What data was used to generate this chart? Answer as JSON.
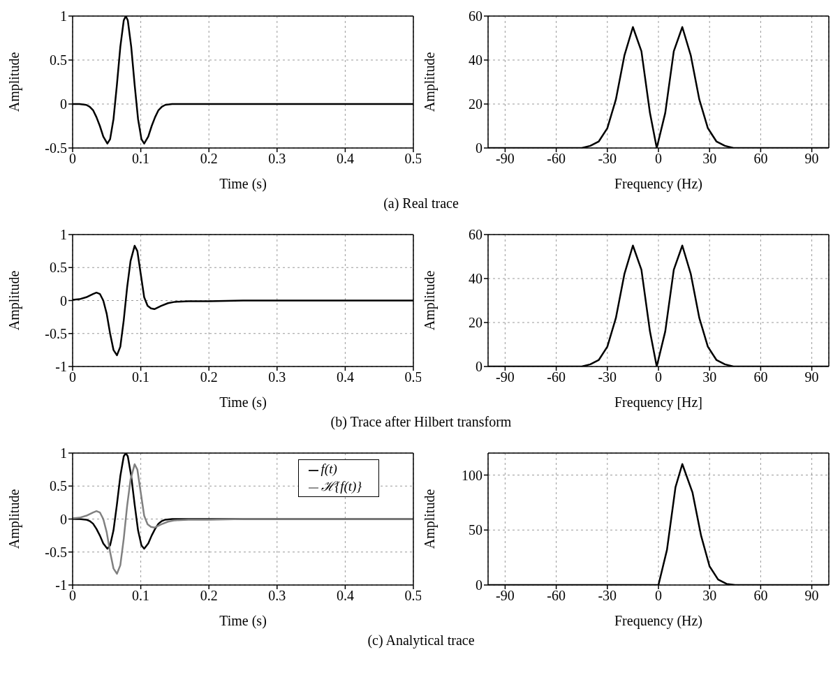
{
  "chart_data": [
    {
      "type": "line",
      "xlabel": "Time (s)",
      "ylabel": "Amplitude",
      "annotations": [
        "(a) Real trace"
      ],
      "xlim": [
        0,
        0.5
      ],
      "xticks": [
        0,
        0.1,
        0.2,
        0.3,
        0.4,
        0.5
      ],
      "ylim": [
        -0.5,
        1
      ],
      "yticks": [
        -0.5,
        0,
        0.5,
        1
      ],
      "grid": true,
      "series": [
        {
          "color": "#000000",
          "x": [
            0,
            0.01,
            0.02,
            0.025,
            0.03,
            0.035,
            0.04,
            0.045,
            0.051,
            0.055,
            0.06,
            0.065,
            0.07,
            0.075,
            0.078,
            0.081,
            0.086,
            0.091,
            0.096,
            0.101,
            0.105,
            0.111,
            0.116,
            0.121,
            0.126,
            0.131,
            0.136,
            0.146,
            0.16,
            0.2,
            0.3,
            0.4,
            0.5
          ],
          "values": [
            0,
            0,
            -0.01,
            -0.03,
            -0.07,
            -0.15,
            -0.25,
            -0.37,
            -0.45,
            -0.4,
            -0.17,
            0.22,
            0.65,
            0.95,
            1,
            0.95,
            0.65,
            0.22,
            -0.17,
            -0.4,
            -0.45,
            -0.37,
            -0.25,
            -0.15,
            -0.07,
            -0.03,
            -0.01,
            0,
            0,
            0,
            0,
            0,
            0
          ]
        }
      ]
    },
    {
      "type": "line",
      "xlabel": "Frequency (Hz)",
      "ylabel": "Amplitude",
      "xlim": [
        -100,
        100
      ],
      "xticks": [
        -90,
        -60,
        -30,
        0,
        30,
        60,
        90
      ],
      "ylim": [
        0,
        60
      ],
      "yticks": [
        0,
        20,
        40,
        60
      ],
      "grid": true,
      "series": [
        {
          "color": "#000000",
          "x": [
            -100,
            -50,
            -45,
            -40,
            -35,
            -30,
            -25,
            -20,
            -15,
            -10,
            -5,
            -1,
            4,
            9,
            14,
            19,
            24,
            29,
            34,
            39,
            44,
            50,
            100
          ],
          "values": [
            0,
            0,
            0,
            1,
            3,
            9,
            22,
            42,
            55,
            44,
            16,
            0,
            16,
            44,
            55,
            42,
            22,
            9,
            3,
            1,
            0,
            0,
            0
          ]
        }
      ]
    },
    {
      "type": "line",
      "xlabel": "Time (s)",
      "ylabel": "Amplitude",
      "annotations": [
        "(b) Trace after Hilbert transform"
      ],
      "xlim": [
        0,
        0.5
      ],
      "xticks": [
        0,
        0.1,
        0.2,
        0.3,
        0.4,
        0.5
      ],
      "ylim": [
        -1,
        1
      ],
      "yticks": [
        -1,
        -0.5,
        0,
        0.5,
        1
      ],
      "grid": true,
      "series": [
        {
          "color": "#000000",
          "x": [
            0,
            0.01,
            0.02,
            0.03,
            0.035,
            0.04,
            0.045,
            0.05,
            0.055,
            0.06,
            0.065,
            0.07,
            0.075,
            0.08,
            0.085,
            0.091,
            0.095,
            0.1,
            0.105,
            0.11,
            0.115,
            0.12,
            0.13,
            0.14,
            0.15,
            0.17,
            0.2,
            0.25,
            0.3,
            0.5
          ],
          "values": [
            0.01,
            0.02,
            0.05,
            0.1,
            0.12,
            0.1,
            0,
            -0.2,
            -0.5,
            -0.75,
            -0.83,
            -0.7,
            -0.3,
            0.2,
            0.6,
            0.83,
            0.75,
            0.4,
            0.05,
            -0.08,
            -0.12,
            -0.13,
            -0.08,
            -0.04,
            -0.02,
            -0.01,
            -0.01,
            0,
            0,
            0
          ]
        }
      ]
    },
    {
      "type": "line",
      "xlabel": "Frequency [Hz]",
      "ylabel": "Amplitude",
      "xlim": [
        -100,
        100
      ],
      "xticks": [
        -90,
        -60,
        -30,
        0,
        30,
        60,
        90
      ],
      "ylim": [
        0,
        60
      ],
      "yticks": [
        0,
        20,
        40,
        60
      ],
      "grid": true,
      "series": [
        {
          "color": "#000000",
          "x": [
            -100,
            -50,
            -45,
            -40,
            -35,
            -30,
            -25,
            -20,
            -15,
            -10,
            -5,
            -1,
            4,
            9,
            14,
            19,
            24,
            29,
            34,
            39,
            44,
            50,
            100
          ],
          "values": [
            0,
            0,
            0,
            1,
            3,
            9,
            22,
            42,
            55,
            44,
            16,
            0,
            16,
            44,
            55,
            42,
            22,
            9,
            3,
            1,
            0,
            0,
            0
          ]
        }
      ]
    },
    {
      "type": "line",
      "xlabel": "Time (s)",
      "ylabel": "Amplitude",
      "annotations": [
        "(c) Analytical trace"
      ],
      "xlim": [
        0,
        0.5
      ],
      "xticks": [
        0,
        0.1,
        0.2,
        0.3,
        0.4,
        0.5
      ],
      "ylim": [
        -1,
        1
      ],
      "yticks": [
        -1,
        -0.5,
        0,
        0.5,
        1
      ],
      "grid": true,
      "legend": "top right",
      "series": [
        {
          "name": "f(t)",
          "color": "#000000",
          "x": [
            0,
            0.01,
            0.02,
            0.025,
            0.03,
            0.035,
            0.04,
            0.045,
            0.051,
            0.055,
            0.06,
            0.065,
            0.07,
            0.075,
            0.078,
            0.081,
            0.086,
            0.091,
            0.096,
            0.101,
            0.105,
            0.111,
            0.116,
            0.121,
            0.126,
            0.131,
            0.136,
            0.146,
            0.16,
            0.2,
            0.3,
            0.4,
            0.5
          ],
          "values": [
            0,
            0,
            -0.01,
            -0.03,
            -0.07,
            -0.15,
            -0.25,
            -0.37,
            -0.45,
            -0.4,
            -0.17,
            0.22,
            0.65,
            0.95,
            1,
            0.95,
            0.65,
            0.22,
            -0.17,
            -0.4,
            -0.45,
            -0.37,
            -0.25,
            -0.15,
            -0.07,
            -0.03,
            -0.01,
            0,
            0,
            0,
            0,
            0,
            0
          ]
        },
        {
          "name": "ℋ{f(t)}",
          "color": "#808080",
          "x": [
            0,
            0.01,
            0.02,
            0.03,
            0.035,
            0.04,
            0.045,
            0.05,
            0.055,
            0.06,
            0.065,
            0.07,
            0.075,
            0.08,
            0.085,
            0.091,
            0.095,
            0.1,
            0.105,
            0.11,
            0.115,
            0.12,
            0.13,
            0.14,
            0.15,
            0.17,
            0.2,
            0.25,
            0.3,
            0.5
          ],
          "values": [
            0.01,
            0.02,
            0.05,
            0.1,
            0.12,
            0.1,
            0,
            -0.2,
            -0.5,
            -0.75,
            -0.83,
            -0.7,
            -0.3,
            0.2,
            0.6,
            0.83,
            0.75,
            0.4,
            0.05,
            -0.08,
            -0.12,
            -0.13,
            -0.08,
            -0.04,
            -0.02,
            -0.01,
            -0.01,
            0,
            0,
            0
          ]
        }
      ]
    },
    {
      "type": "line",
      "xlabel": "Frequency (Hz)",
      "ylabel": "Amplitude",
      "xlim": [
        -100,
        100
      ],
      "xticks": [
        -90,
        -60,
        -30,
        0,
        30,
        60,
        90
      ],
      "ylim": [
        0,
        120
      ],
      "yticks": [
        0,
        50,
        100
      ],
      "grid": true,
      "series": [
        {
          "color": "#000000",
          "x": [
            -100,
            -50,
            0,
            5,
            10,
            14,
            20,
            25,
            30,
            35,
            40,
            45,
            100
          ],
          "values": [
            0,
            0,
            0,
            32,
            89,
            110,
            84,
            45,
            17,
            5,
            1,
            0,
            0
          ]
        }
      ]
    }
  ]
}
